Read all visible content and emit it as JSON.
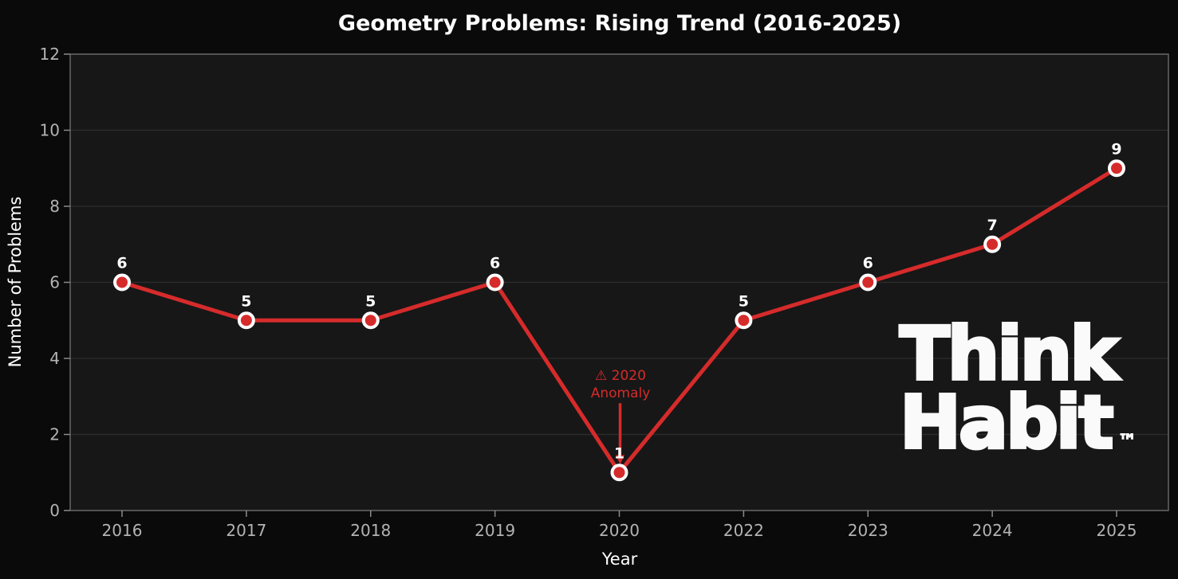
{
  "chart_data": {
    "type": "line",
    "title": "Geometry Problems: Rising Trend (2016-2025)",
    "xlabel": "Year",
    "ylabel": "Number of Problems",
    "x": [
      "2016",
      "2017",
      "2018",
      "2019",
      "2020",
      "2022",
      "2023",
      "2024",
      "2025"
    ],
    "series": [
      {
        "name": "Geometry Problems",
        "values": [
          6,
          5,
          5,
          6,
          1,
          5,
          6,
          7,
          9
        ]
      }
    ],
    "point_labels": [
      "6",
      "5",
      "5",
      "6",
      "1",
      "5",
      "6",
      "7",
      "9"
    ],
    "ylim": [
      0,
      12
    ],
    "yticks": [
      0,
      2,
      4,
      6,
      8,
      10,
      12
    ],
    "grid": "horizontal",
    "legend": "none",
    "annotation": {
      "line1": "⚠ 2020",
      "line2": "Anomaly",
      "target_year": "2020",
      "target_value": 1,
      "color": "#d62b2b"
    }
  },
  "colors": {
    "page_bg": "#0a0a0a",
    "plot_bg": "#171717",
    "grid": "#2d2d2d",
    "spine": "#666666",
    "tick": "#8a8a8a",
    "tick_label": "#b3b3b3",
    "line": "#d62b2b",
    "marker_face": "#d62b2b",
    "marker_edge": "#ffffff",
    "text": "#ffffff"
  },
  "watermark": {
    "line1": "Think",
    "line2": "Habit",
    "tm": "™"
  }
}
